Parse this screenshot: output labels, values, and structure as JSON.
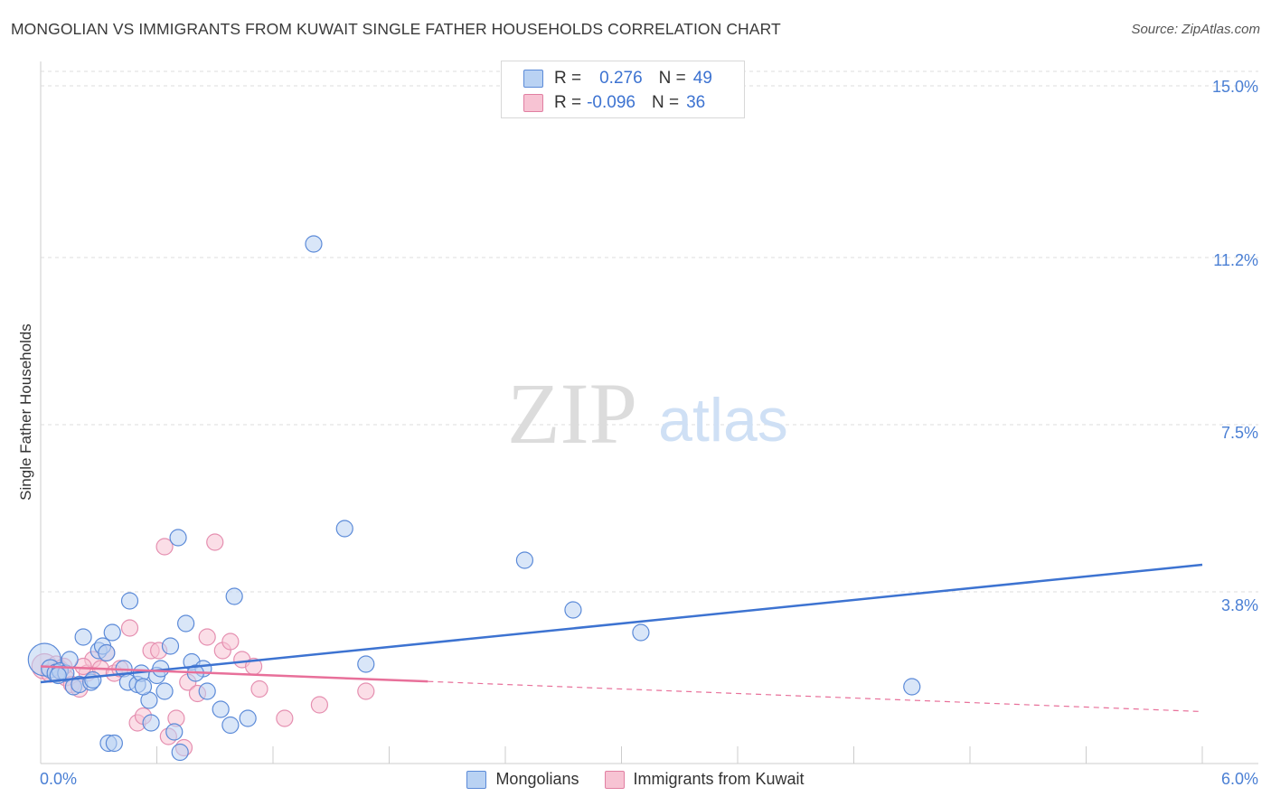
{
  "title": "MONGOLIAN VS IMMIGRANTS FROM KUWAIT SINGLE FATHER HOUSEHOLDS CORRELATION CHART",
  "source": "Source: ZipAtlas.com",
  "watermark": {
    "zip": "ZIP",
    "atlas": "atlas"
  },
  "colors": {
    "blue": "#3d73d1",
    "blue_fill": "#b9d2f3",
    "pink": "#e8709a",
    "pink_fill": "#f7c3d3",
    "grid": "#dddddd",
    "tick_text": "#4a7fd4"
  },
  "legend_top": {
    "rows": [
      {
        "r_label": "R =",
        "r_value": "0.276",
        "n_label": "N =",
        "n_value": "49"
      },
      {
        "r_label": "R =",
        "r_value": "-0.096",
        "n_label": "N =",
        "n_value": "36"
      }
    ]
  },
  "legend_bottom": {
    "series1": "Mongolians",
    "series2": "Immigrants from Kuwait"
  },
  "chart_data": {
    "type": "scatter",
    "xlabel": "",
    "ylabel": "Single Father Households",
    "xlim": [
      0,
      6.0
    ],
    "ylim": [
      0,
      15.0
    ],
    "x_tick_labels": [
      "0.0%",
      "6.0%"
    ],
    "y_ticks": [
      3.8,
      7.5,
      11.2,
      15.0
    ],
    "y_tick_labels": [
      "3.8%",
      "7.5%",
      "11.2%",
      "15.0%"
    ],
    "series": [
      {
        "name": "Mongolians",
        "r": 0.276,
        "n": 49,
        "trend": {
          "x0": 0.0,
          "y0": 1.8,
          "x1": 6.0,
          "y1": 4.4,
          "dashed_from": null
        },
        "points": [
          [
            0.02,
            2.3,
            18
          ],
          [
            0.05,
            2.1,
            10
          ],
          [
            0.08,
            2.0,
            10
          ],
          [
            0.1,
            2.05,
            9
          ],
          [
            0.13,
            2.0,
            9
          ],
          [
            0.15,
            2.3,
            9
          ],
          [
            0.17,
            1.7,
            9
          ],
          [
            0.2,
            1.75,
            9
          ],
          [
            0.22,
            2.8,
            9
          ],
          [
            0.26,
            1.8,
            9
          ],
          [
            0.3,
            2.5,
            9
          ],
          [
            0.32,
            2.6,
            9
          ],
          [
            0.37,
            2.9,
            9
          ],
          [
            0.43,
            2.1,
            9
          ],
          [
            0.45,
            1.8,
            9
          ],
          [
            0.46,
            3.6,
            9
          ],
          [
            0.5,
            1.75,
            9
          ],
          [
            0.52,
            2.0,
            9
          ],
          [
            0.56,
            1.4,
            9
          ],
          [
            0.57,
            0.9,
            9
          ],
          [
            0.6,
            1.95,
            9
          ],
          [
            0.62,
            2.1,
            9
          ],
          [
            0.64,
            1.6,
            9
          ],
          [
            0.67,
            2.6,
            9
          ],
          [
            0.69,
            0.7,
            9
          ],
          [
            0.71,
            5.0,
            9
          ],
          [
            0.75,
            3.1,
            9
          ],
          [
            0.78,
            2.25,
            9
          ],
          [
            0.84,
            2.1,
            9
          ],
          [
            0.86,
            1.6,
            9
          ],
          [
            0.93,
            1.2,
            9
          ],
          [
            0.98,
            0.85,
            9
          ],
          [
            1.0,
            3.7,
            9
          ],
          [
            1.07,
            1.0,
            9
          ],
          [
            1.41,
            11.5,
            9
          ],
          [
            1.57,
            5.2,
            9
          ],
          [
            1.68,
            2.2,
            9
          ],
          [
            2.5,
            4.5,
            9
          ],
          [
            2.75,
            3.4,
            9
          ],
          [
            3.1,
            2.9,
            9
          ],
          [
            4.5,
            1.7,
            9
          ],
          [
            0.35,
            0.45,
            9
          ],
          [
            0.38,
            0.45,
            9
          ],
          [
            0.09,
            1.95,
            9
          ],
          [
            0.27,
            1.85,
            9
          ],
          [
            0.34,
            2.45,
            9
          ],
          [
            0.53,
            1.7,
            9
          ],
          [
            0.72,
            0.25,
            9
          ],
          [
            0.8,
            2.0,
            9
          ]
        ]
      },
      {
        "name": "Immigrants from Kuwait",
        "r": -0.096,
        "n": 36,
        "trend": {
          "x0": 0.0,
          "y0": 2.15,
          "x1": 6.0,
          "y1": 1.15,
          "dashed_from": 2.0
        },
        "points": [
          [
            0.02,
            2.15,
            14
          ],
          [
            0.05,
            2.0,
            10
          ],
          [
            0.08,
            2.2,
            9
          ],
          [
            0.1,
            2.1,
            9
          ],
          [
            0.13,
            1.9,
            9
          ],
          [
            0.16,
            1.75,
            9
          ],
          [
            0.2,
            1.65,
            9
          ],
          [
            0.24,
            2.0,
            9
          ],
          [
            0.27,
            2.3,
            9
          ],
          [
            0.31,
            2.1,
            9
          ],
          [
            0.34,
            2.45,
            9
          ],
          [
            0.38,
            2.0,
            9
          ],
          [
            0.41,
            2.1,
            9
          ],
          [
            0.46,
            3.0,
            9
          ],
          [
            0.5,
            0.9,
            9
          ],
          [
            0.53,
            1.05,
            9
          ],
          [
            0.57,
            2.5,
            9
          ],
          [
            0.61,
            2.5,
            9
          ],
          [
            0.64,
            4.8,
            9
          ],
          [
            0.66,
            0.6,
            9
          ],
          [
            0.7,
            1.0,
            9
          ],
          [
            0.74,
            0.35,
            9
          ],
          [
            0.76,
            1.8,
            9
          ],
          [
            0.81,
            1.55,
            9
          ],
          [
            0.86,
            2.8,
            9
          ],
          [
            0.9,
            4.9,
            9
          ],
          [
            0.94,
            2.5,
            9
          ],
          [
            0.98,
            2.7,
            9
          ],
          [
            1.04,
            2.3,
            9
          ],
          [
            1.1,
            2.15,
            9
          ],
          [
            1.13,
            1.65,
            9
          ],
          [
            1.26,
            1.0,
            9
          ],
          [
            1.44,
            1.3,
            9
          ],
          [
            1.68,
            1.6,
            9
          ],
          [
            0.12,
            2.15,
            9
          ],
          [
            0.22,
            2.15,
            9
          ]
        ]
      }
    ]
  }
}
